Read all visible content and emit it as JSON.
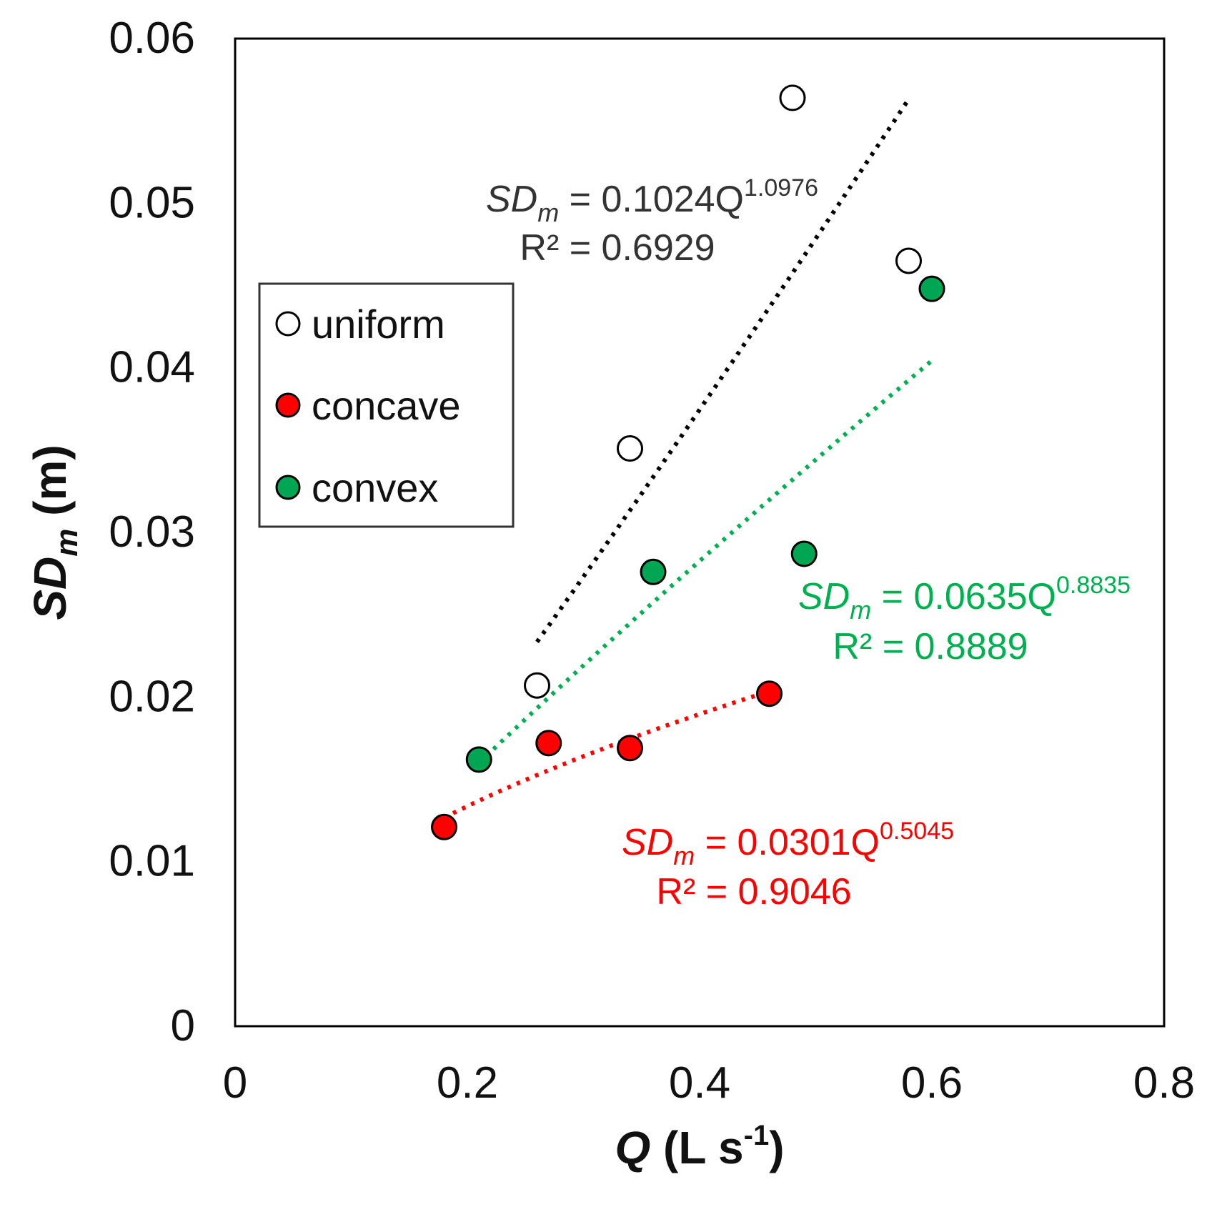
{
  "chart_data": {
    "type": "scatter",
    "title": "",
    "xlabel": {
      "main": "Q",
      "unit_open": " (L s",
      "unit_exp": "-1",
      "unit_close": ")"
    },
    "ylabel": {
      "main": "SD",
      "sub": "m",
      "unit": " (m)"
    },
    "xlim": [
      0,
      0.8
    ],
    "ylim": [
      0,
      0.06
    ],
    "x_ticks": [
      0,
      0.2,
      0.4,
      0.6,
      0.8
    ],
    "x_tick_labels": [
      "0",
      "0.2",
      "0.4",
      "0.6",
      "0.8"
    ],
    "y_ticks": [
      0,
      0.01,
      0.02,
      0.03,
      0.04,
      0.05,
      0.06
    ],
    "y_tick_labels": [
      "0",
      "0.01",
      "0.02",
      "0.03",
      "0.04",
      "0.05",
      "0.06"
    ],
    "grid": false,
    "legend_position": "left-middle",
    "series": [
      {
        "name": "uniform",
        "fill": "#ffffff",
        "line_color": "#000000",
        "points": [
          [
            0.26,
            0.0207
          ],
          [
            0.34,
            0.0351
          ],
          [
            0.48,
            0.0564
          ],
          [
            0.58,
            0.0465
          ]
        ],
        "trend": {
          "a": 0.1024,
          "b": 1.0976,
          "x_from": 0.26,
          "x_to": 0.58
        },
        "equation": {
          "lhs": "SD",
          "sub": "m",
          "coef": " = 0.1024Q",
          "exp": "1.0976",
          "r2": "R² = 0.6929"
        }
      },
      {
        "name": "concave",
        "fill": "#ff0000",
        "line_color": "#ff0000",
        "points": [
          [
            0.18,
            0.0121
          ],
          [
            0.27,
            0.0172
          ],
          [
            0.34,
            0.0169
          ],
          [
            0.46,
            0.0202
          ]
        ],
        "trend": {
          "a": 0.0301,
          "b": 0.5045,
          "x_from": 0.18,
          "x_to": 0.46
        },
        "equation": {
          "lhs": "SD",
          "sub": "m",
          "coef": " = 0.0301Q",
          "exp": "0.5045",
          "r2": "R² = 0.9046"
        }
      },
      {
        "name": "convex",
        "fill": "#00a651",
        "line_color": "#00b050",
        "points": [
          [
            0.21,
            0.0162
          ],
          [
            0.36,
            0.0276
          ],
          [
            0.49,
            0.0287
          ],
          [
            0.6,
            0.0448
          ]
        ],
        "trend": {
          "a": 0.0635,
          "b": 0.8835,
          "x_from": 0.21,
          "x_to": 0.6
        },
        "equation": {
          "lhs": "SD",
          "sub": "m",
          "coef": " = 0.0635Q",
          "exp": "0.8835",
          "r2": "R² = 0.8889"
        }
      }
    ]
  },
  "colors": {
    "uniform_eq_text": "#333333",
    "concave_eq_text": "#ff0000",
    "convex_eq_text": "#00b050",
    "axis": "#000000"
  }
}
